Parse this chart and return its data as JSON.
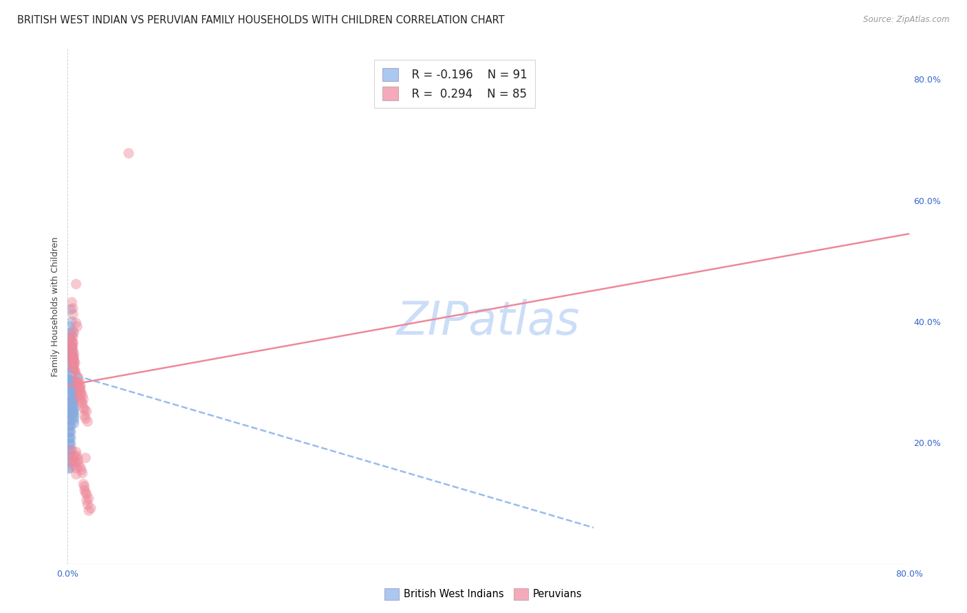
{
  "title": "BRITISH WEST INDIAN VS PERUVIAN FAMILY HOUSEHOLDS WITH CHILDREN CORRELATION CHART",
  "source": "Source: ZipAtlas.com",
  "ylabel": "Family Households with Children",
  "right_yticks": [
    "80.0%",
    "60.0%",
    "40.0%",
    "20.0%"
  ],
  "right_ytick_vals": [
    0.8,
    0.6,
    0.4,
    0.2
  ],
  "xlim": [
    0.0,
    0.8
  ],
  "ylim": [
    0.0,
    0.85
  ],
  "bwi_color": "#aac8f0",
  "peruvian_color": "#f4aabb",
  "bwi_scatter_color": "#88aadd",
  "peruvian_scatter_color": "#ee8899",
  "trend_bwi_color": "#99bbee",
  "trend_peruvian_color": "#ee8899",
  "watermark": "ZIPatlas",
  "watermark_color": "#ccddf8",
  "title_fontsize": 10.5,
  "bwi_trend_start_y": 0.315,
  "bwi_trend_slope": -0.3,
  "per_trend_start_y": 0.295,
  "per_trend_slope": 0.3,
  "bwi_points": [
    [
      0.003,
      0.42
    ],
    [
      0.004,
      0.4
    ],
    [
      0.003,
      0.375
    ],
    [
      0.005,
      0.385
    ],
    [
      0.003,
      0.36
    ],
    [
      0.004,
      0.345
    ],
    [
      0.004,
      0.358
    ],
    [
      0.005,
      0.34
    ],
    [
      0.004,
      0.35
    ],
    [
      0.004,
      0.33
    ],
    [
      0.005,
      0.342
    ],
    [
      0.005,
      0.322
    ],
    [
      0.004,
      0.335
    ],
    [
      0.004,
      0.318
    ],
    [
      0.004,
      0.328
    ],
    [
      0.004,
      0.312
    ],
    [
      0.005,
      0.322
    ],
    [
      0.005,
      0.308
    ],
    [
      0.004,
      0.318
    ],
    [
      0.004,
      0.302
    ],
    [
      0.005,
      0.312
    ],
    [
      0.005,
      0.298
    ],
    [
      0.004,
      0.308
    ],
    [
      0.005,
      0.292
    ],
    [
      0.005,
      0.302
    ],
    [
      0.005,
      0.288
    ],
    [
      0.005,
      0.298
    ],
    [
      0.005,
      0.282
    ],
    [
      0.005,
      0.295
    ],
    [
      0.005,
      0.278
    ],
    [
      0.005,
      0.288
    ],
    [
      0.005,
      0.272
    ],
    [
      0.005,
      0.285
    ],
    [
      0.005,
      0.268
    ],
    [
      0.005,
      0.278
    ],
    [
      0.005,
      0.262
    ],
    [
      0.005,
      0.272
    ],
    [
      0.005,
      0.258
    ],
    [
      0.005,
      0.268
    ],
    [
      0.005,
      0.252
    ],
    [
      0.005,
      0.265
    ],
    [
      0.005,
      0.248
    ],
    [
      0.006,
      0.258
    ],
    [
      0.006,
      0.242
    ],
    [
      0.006,
      0.252
    ],
    [
      0.006,
      0.238
    ],
    [
      0.006,
      0.248
    ],
    [
      0.006,
      0.232
    ],
    [
      0.005,
      0.298
    ],
    [
      0.005,
      0.288
    ],
    [
      0.004,
      0.318
    ],
    [
      0.004,
      0.308
    ],
    [
      0.003,
      0.298
    ],
    [
      0.003,
      0.288
    ],
    [
      0.003,
      0.278
    ],
    [
      0.003,
      0.268
    ],
    [
      0.003,
      0.258
    ],
    [
      0.003,
      0.248
    ],
    [
      0.003,
      0.238
    ],
    [
      0.003,
      0.228
    ],
    [
      0.003,
      0.218
    ],
    [
      0.003,
      0.208
    ],
    [
      0.003,
      0.198
    ],
    [
      0.003,
      0.188
    ],
    [
      0.002,
      0.268
    ],
    [
      0.002,
      0.258
    ],
    [
      0.002,
      0.248
    ],
    [
      0.002,
      0.238
    ],
    [
      0.002,
      0.228
    ],
    [
      0.002,
      0.218
    ],
    [
      0.002,
      0.208
    ],
    [
      0.002,
      0.198
    ],
    [
      0.002,
      0.188
    ],
    [
      0.002,
      0.178
    ],
    [
      0.002,
      0.168
    ],
    [
      0.002,
      0.158
    ],
    [
      0.001,
      0.248
    ],
    [
      0.001,
      0.238
    ],
    [
      0.001,
      0.228
    ],
    [
      0.001,
      0.218
    ],
    [
      0.001,
      0.208
    ],
    [
      0.001,
      0.198
    ],
    [
      0.001,
      0.185
    ],
    [
      0.001,
      0.172
    ],
    [
      0.001,
      0.158
    ],
    [
      0.002,
      0.392
    ],
    [
      0.003,
      0.382
    ],
    [
      0.002,
      0.372
    ],
    [
      0.001,
      0.362
    ],
    [
      0.001,
      0.352
    ],
    [
      0.002,
      0.342
    ]
  ],
  "peruvian_points": [
    [
      0.003,
      0.362
    ],
    [
      0.004,
      0.378
    ],
    [
      0.005,
      0.365
    ],
    [
      0.006,
      0.382
    ],
    [
      0.004,
      0.368
    ],
    [
      0.005,
      0.375
    ],
    [
      0.004,
      0.358
    ],
    [
      0.005,
      0.365
    ],
    [
      0.004,
      0.348
    ],
    [
      0.005,
      0.358
    ],
    [
      0.004,
      0.342
    ],
    [
      0.005,
      0.352
    ],
    [
      0.005,
      0.338
    ],
    [
      0.006,
      0.348
    ],
    [
      0.005,
      0.332
    ],
    [
      0.006,
      0.342
    ],
    [
      0.005,
      0.325
    ],
    [
      0.006,
      0.335
    ],
    [
      0.006,
      0.322
    ],
    [
      0.007,
      0.332
    ],
    [
      0.007,
      0.318
    ],
    [
      0.008,
      0.398
    ],
    [
      0.009,
      0.392
    ],
    [
      0.008,
      0.312
    ],
    [
      0.009,
      0.308
    ],
    [
      0.009,
      0.302
    ],
    [
      0.01,
      0.308
    ],
    [
      0.01,
      0.298
    ],
    [
      0.01,
      0.292
    ],
    [
      0.011,
      0.302
    ],
    [
      0.011,
      0.288
    ],
    [
      0.012,
      0.295
    ],
    [
      0.012,
      0.282
    ],
    [
      0.012,
      0.292
    ],
    [
      0.011,
      0.278
    ],
    [
      0.012,
      0.288
    ],
    [
      0.012,
      0.272
    ],
    [
      0.013,
      0.282
    ],
    [
      0.013,
      0.268
    ],
    [
      0.014,
      0.278
    ],
    [
      0.014,
      0.265
    ],
    [
      0.015,
      0.272
    ],
    [
      0.015,
      0.258
    ],
    [
      0.016,
      0.245
    ],
    [
      0.016,
      0.255
    ],
    [
      0.017,
      0.24
    ],
    [
      0.018,
      0.252
    ],
    [
      0.019,
      0.235
    ],
    [
      0.008,
      0.462
    ],
    [
      0.004,
      0.432
    ],
    [
      0.005,
      0.422
    ],
    [
      0.005,
      0.412
    ],
    [
      0.005,
      0.34
    ],
    [
      0.006,
      0.334
    ],
    [
      0.006,
      0.328
    ],
    [
      0.007,
      0.318
    ],
    [
      0.008,
      0.185
    ],
    [
      0.009,
      0.178
    ],
    [
      0.01,
      0.172
    ],
    [
      0.01,
      0.165
    ],
    [
      0.012,
      0.16
    ],
    [
      0.013,
      0.155
    ],
    [
      0.014,
      0.15
    ],
    [
      0.015,
      0.132
    ],
    [
      0.016,
      0.128
    ],
    [
      0.016,
      0.122
    ],
    [
      0.017,
      0.118
    ],
    [
      0.018,
      0.105
    ],
    [
      0.019,
      0.098
    ],
    [
      0.022,
      0.092
    ],
    [
      0.007,
      0.178
    ],
    [
      0.008,
      0.168
    ],
    [
      0.008,
      0.158
    ],
    [
      0.008,
      0.148
    ],
    [
      0.004,
      0.188
    ],
    [
      0.005,
      0.178
    ],
    [
      0.006,
      0.172
    ],
    [
      0.02,
      0.088
    ],
    [
      0.058,
      0.678
    ],
    [
      0.004,
      0.17
    ],
    [
      0.005,
      0.162
    ],
    [
      0.017,
      0.175
    ],
    [
      0.018,
      0.115
    ],
    [
      0.02,
      0.108
    ]
  ]
}
